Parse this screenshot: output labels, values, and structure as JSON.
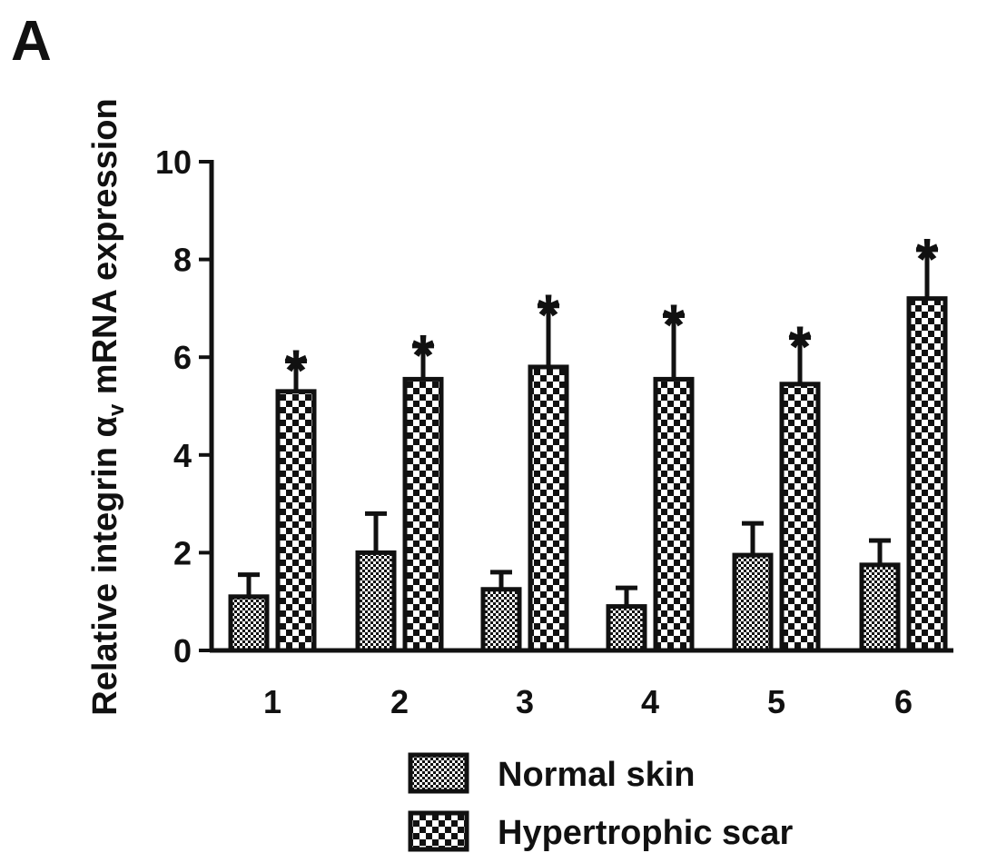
{
  "panel_label": "A",
  "chart_data": {
    "type": "bar",
    "categories": [
      "1",
      "2",
      "3",
      "4",
      "5",
      "6"
    ],
    "ylabel_parts": {
      "before": "Relative integrin α",
      "subscript": "v",
      "after": " mRNA expression"
    },
    "xlabel": "",
    "ylim": [
      0,
      10
    ],
    "yticks": [
      "0",
      "2",
      "4",
      "6",
      "8",
      "10"
    ],
    "series": [
      {
        "name": "Normal skin",
        "pattern": "fine-checker",
        "values": [
          1.1,
          2.0,
          1.25,
          0.9,
          1.95,
          1.75
        ],
        "errors": [
          0.45,
          0.8,
          0.35,
          0.38,
          0.65,
          0.5
        ],
        "significance": [
          "",
          "",
          "",
          "",
          "",
          ""
        ]
      },
      {
        "name": "Hypertrophic scar",
        "pattern": "coarse-checker",
        "values": [
          5.3,
          5.55,
          5.8,
          5.55,
          5.45,
          7.2
        ],
        "errors": [
          0.62,
          0.68,
          1.25,
          1.3,
          0.95,
          1.0
        ],
        "significance": [
          "*",
          "*",
          "*",
          "*",
          "*",
          "*"
        ]
      }
    ],
    "legend_position": "bottom",
    "grid": false
  }
}
